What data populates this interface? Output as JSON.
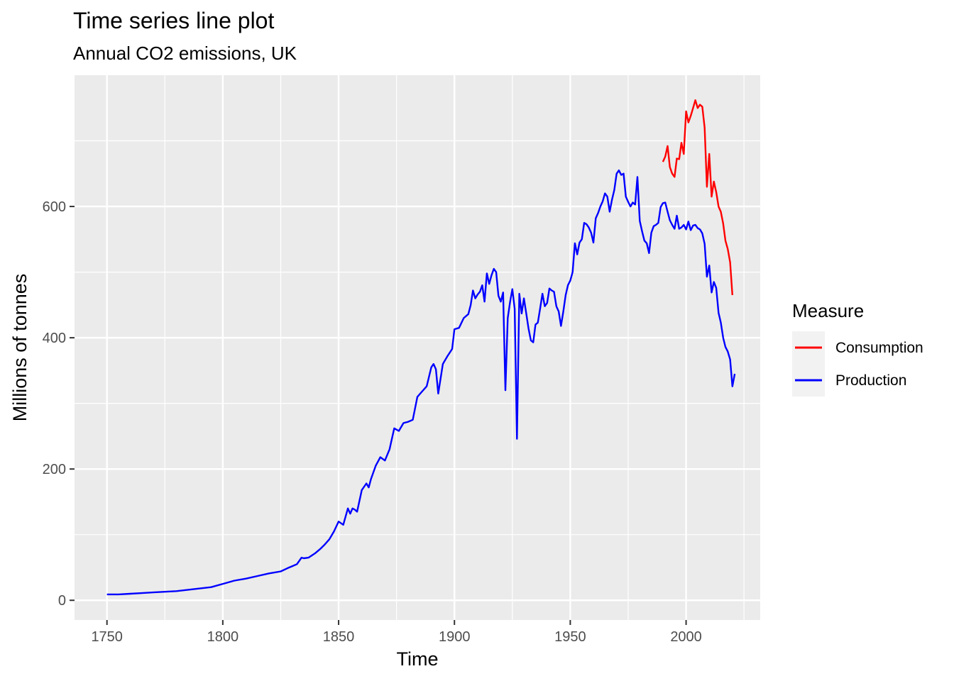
{
  "chart_data": {
    "type": "line",
    "title": "Time series line plot",
    "subtitle": "Annual CO2 emissions, UK",
    "xlabel": "Time",
    "ylabel": "Millions of tonnes",
    "xlim": [
      1736,
      2032
    ],
    "ylim": [
      -30,
      800
    ],
    "x_ticks": [
      1750,
      1800,
      1850,
      1900,
      1950,
      2000
    ],
    "x_tick_labels": [
      "1750",
      "1800",
      "1850",
      "1900",
      "1950",
      "2000"
    ],
    "y_ticks": [
      0,
      200,
      400,
      600
    ],
    "y_tick_labels": [
      "0",
      "200",
      "400",
      "600"
    ],
    "grid": true,
    "legend": {
      "title": "Measure",
      "position": "right",
      "entries": [
        {
          "label": "Consumption",
          "color": "#ff0000"
        },
        {
          "label": "Production",
          "color": "#0000ff"
        }
      ]
    },
    "series": [
      {
        "name": "Consumption",
        "color": "#ff0000",
        "x": [
          1990,
          1991,
          1992,
          1993,
          1994,
          1995,
          1996,
          1997,
          1998,
          1999,
          2000,
          2001,
          2002,
          2003,
          2004,
          2005,
          2006,
          2007,
          2008,
          2009,
          2010,
          2011,
          2012,
          2013,
          2014,
          2015,
          2016,
          2017,
          2018,
          2019,
          2020
        ],
        "y": [
          668,
          676,
          692,
          660,
          650,
          645,
          673,
          672,
          697,
          680,
          745,
          728,
          738,
          750,
          762,
          750,
          755,
          752,
          720,
          630,
          680,
          615,
          638,
          622,
          600,
          592,
          574,
          548,
          535,
          515,
          465
        ]
      },
      {
        "name": "Production",
        "color": "#0000ff",
        "x": [
          1750,
          1755,
          1760,
          1765,
          1770,
          1775,
          1780,
          1785,
          1790,
          1795,
          1800,
          1805,
          1810,
          1815,
          1820,
          1825,
          1828,
          1830,
          1832,
          1834,
          1835,
          1837,
          1840,
          1842,
          1844,
          1846,
          1848,
          1850,
          1852,
          1854,
          1855,
          1856,
          1857,
          1858,
          1860,
          1862,
          1863,
          1864,
          1866,
          1868,
          1870,
          1872,
          1874,
          1876,
          1878,
          1880,
          1882,
          1884,
          1886,
          1888,
          1890,
          1891,
          1892,
          1893,
          1895,
          1897,
          1899,
          1900,
          1902,
          1904,
          1906,
          1907,
          1908,
          1909,
          1910,
          1911,
          1912,
          1913,
          1914,
          1915,
          1916,
          1917,
          1918,
          1919,
          1920,
          1921,
          1922,
          1923,
          1924,
          1925,
          1926,
          1927,
          1928,
          1929,
          1930,
          1931,
          1932,
          1933,
          1934,
          1935,
          1936,
          1937,
          1938,
          1939,
          1940,
          1941,
          1942,
          1943,
          1944,
          1945,
          1946,
          1947,
          1948,
          1949,
          1950,
          1951,
          1952,
          1953,
          1954,
          1955,
          1956,
          1957,
          1958,
          1959,
          1960,
          1961,
          1962,
          1963,
          1964,
          1965,
          1966,
          1967,
          1968,
          1969,
          1970,
          1971,
          1972,
          1973,
          1974,
          1975,
          1976,
          1977,
          1978,
          1979,
          1980,
          1981,
          1982,
          1983,
          1984,
          1985,
          1986,
          1987,
          1988,
          1989,
          1990,
          1991,
          1992,
          1993,
          1994,
          1995,
          1996,
          1997,
          1998,
          1999,
          2000,
          2001,
          2002,
          2003,
          2004,
          2005,
          2006,
          2007,
          2008,
          2009,
          2010,
          2011,
          2012,
          2013,
          2014,
          2015,
          2016,
          2017,
          2018,
          2019,
          2020,
          2021
        ],
        "y": [
          9,
          9,
          10,
          11,
          12,
          13,
          14,
          16,
          18,
          20,
          25,
          30,
          33,
          37,
          41,
          44,
          49,
          52,
          55,
          65,
          64,
          65,
          72,
          78,
          85,
          93,
          105,
          120,
          115,
          140,
          132,
          140,
          138,
          135,
          168,
          178,
          172,
          185,
          205,
          218,
          213,
          230,
          262,
          258,
          270,
          272,
          275,
          310,
          318,
          326,
          355,
          360,
          352,
          315,
          360,
          372,
          383,
          413,
          415,
          430,
          436,
          450,
          472,
          460,
          466,
          470,
          480,
          455,
          498,
          482,
          495,
          505,
          500,
          464,
          455,
          469,
          320,
          430,
          454,
          474,
          444,
          246,
          467,
          437,
          460,
          437,
          414,
          396,
          393,
          420,
          423,
          445,
          467,
          448,
          453,
          475,
          472,
          470,
          448,
          440,
          418,
          440,
          465,
          480,
          487,
          500,
          544,
          527,
          545,
          550,
          575,
          573,
          568,
          560,
          545,
          582,
          590,
          600,
          608,
          620,
          615,
          592,
          610,
          625,
          650,
          655,
          648,
          650,
          615,
          607,
          600,
          606,
          603,
          645,
          578,
          562,
          548,
          544,
          529,
          560,
          570,
          572,
          575,
          599,
          605,
          606,
          592,
          579,
          572,
          566,
          586,
          566,
          568,
          572,
          565,
          577,
          564,
          571,
          572,
          567,
          565,
          559,
          543,
          493,
          510,
          469,
          485,
          476,
          438,
          423,
          400,
          386,
          379,
          367,
          326,
          345
        ]
      }
    ]
  }
}
